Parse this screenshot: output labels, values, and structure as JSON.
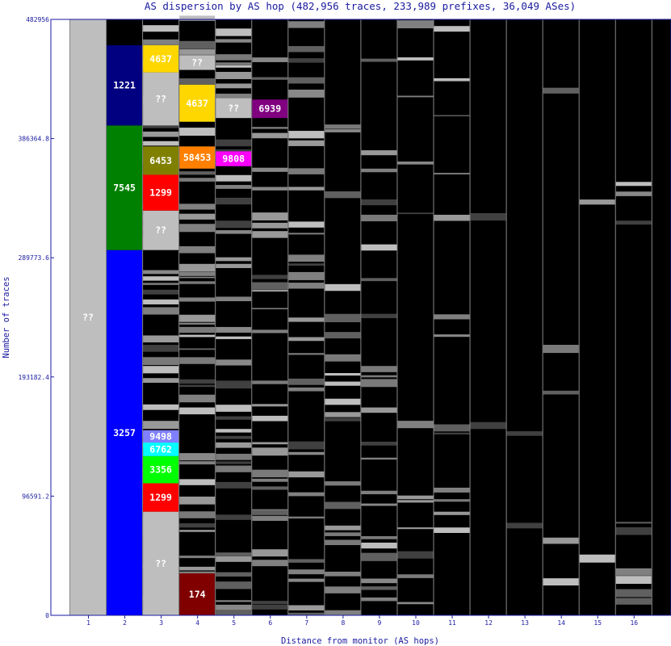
{
  "chart_data": {
    "type": "bar",
    "title": "AS dispersion by AS hop (482,956 traces, 233,989 prefixes, 36,049 ASes)",
    "xlabel": "Distance from monitor (AS hops)",
    "ylabel": "Number of traces",
    "ylim": [
      0,
      482956
    ],
    "y_ticks": [
      "0",
      "96591.2",
      "193182.4",
      "289773.6",
      "386364.8",
      "482956"
    ],
    "x_ticks": [
      "1",
      "2",
      "3",
      "4",
      "5",
      "6",
      "7",
      "8",
      "9",
      "10",
      "11",
      "12",
      "13",
      "14",
      "15",
      "16"
    ],
    "background_color": "#000000",
    "labeled_segments": [
      {
        "hop": 1,
        "label": "??",
        "from": 0,
        "to": 482956,
        "color": "#bebebe"
      },
      {
        "hop": 2,
        "label": "3257",
        "from": 0,
        "to": 296000,
        "color": "#0000ff"
      },
      {
        "hop": 2,
        "label": "7545",
        "from": 296000,
        "to": 397000,
        "color": "#008000"
      },
      {
        "hop": 2,
        "label": "1221",
        "from": 397000,
        "to": 462000,
        "color": "#000080"
      },
      {
        "hop": 3,
        "label": "??",
        "from": 0,
        "to": 84000,
        "color": "#bebebe"
      },
      {
        "hop": 3,
        "label": "1299",
        "from": 84000,
        "to": 107000,
        "color": "#ff0000"
      },
      {
        "hop": 3,
        "label": "3356",
        "from": 107000,
        "to": 129000,
        "color": "#00ff00"
      },
      {
        "hop": 3,
        "label": "6762",
        "from": 129000,
        "to": 140000,
        "color": "#00ffff"
      },
      {
        "hop": 3,
        "label": "9498",
        "from": 140000,
        "to": 150000,
        "color": "#8080ff"
      },
      {
        "hop": 3,
        "label": "??",
        "from": 296000,
        "to": 328000,
        "color": "#bebebe"
      },
      {
        "hop": 3,
        "label": "1299",
        "from": 328000,
        "to": 357000,
        "color": "#ff0000"
      },
      {
        "hop": 3,
        "label": "6453",
        "from": 357000,
        "to": 380000,
        "color": "#808000"
      },
      {
        "hop": 3,
        "label": "??",
        "from": 397000,
        "to": 440000,
        "color": "#bebebe"
      },
      {
        "hop": 3,
        "label": "4637",
        "from": 440000,
        "to": 462000,
        "color": "#ffd700"
      },
      {
        "hop": 4,
        "label": "174",
        "from": 0,
        "to": 34000,
        "color": "#800000"
      },
      {
        "hop": 4,
        "label": "58453",
        "from": 362000,
        "to": 380000,
        "color": "#ff8000"
      },
      {
        "hop": 4,
        "label": "4637",
        "from": 400000,
        "to": 430000,
        "color": "#ffd700"
      },
      {
        "hop": 4,
        "label": "??",
        "from": 442000,
        "to": 454000,
        "color": "#bebebe"
      },
      {
        "hop": 5,
        "label": "9808",
        "from": 364000,
        "to": 376000,
        "color": "#ff00ff"
      },
      {
        "hop": 5,
        "label": "??",
        "from": 403000,
        "to": 419000,
        "color": "#bebebe"
      },
      {
        "hop": 6,
        "label": "6939",
        "from": 403000,
        "to": 418000,
        "color": "#800080"
      }
    ]
  }
}
